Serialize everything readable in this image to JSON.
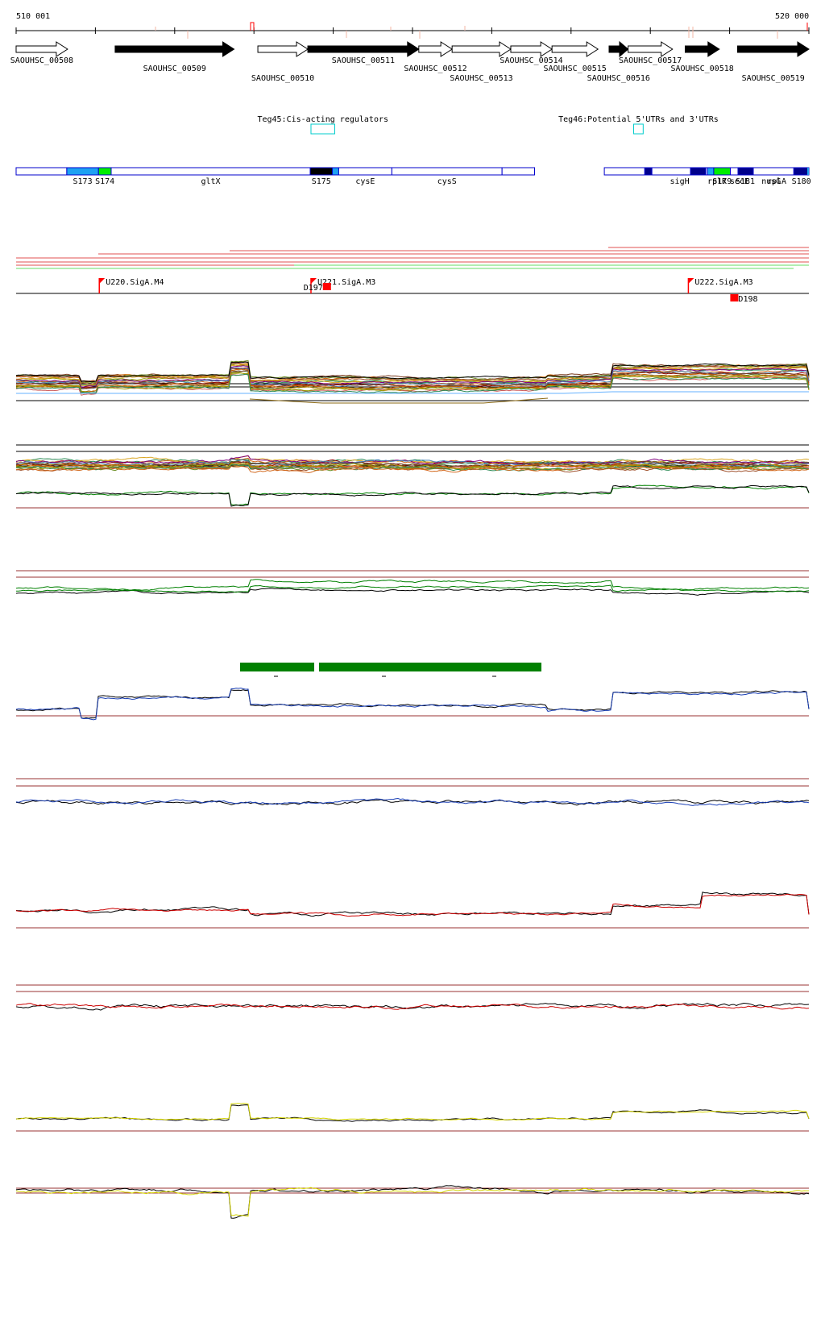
{
  "coords": {
    "start_label": "510 001",
    "end_label": "520 000",
    "start": 510001,
    "end": 520000
  },
  "colors": {
    "gene_black": "#000000",
    "seg_border": "#0000cc",
    "teg_box": "#00cccc",
    "promoter": "#ff0000",
    "guide_line": "#993333",
    "green_bar": "#008000",
    "track_green": "#008000",
    "track_blue": "#1a3fb5",
    "track_red": "#cc0000",
    "track_yellow": "#d4d400"
  },
  "genes": [
    {
      "id": "SAOUHSC_00508",
      "start": 510001,
      "end": 510650,
      "strand": "+",
      "filled": false,
      "label_row": 0
    },
    {
      "id": "SAOUHSC_00509",
      "start": 511250,
      "end": 512750,
      "strand": "+",
      "filled": true,
      "label_row": 1
    },
    {
      "id": "SAOUHSC_00510",
      "start": 513050,
      "end": 513680,
      "strand": "+",
      "filled": false,
      "label_row": 2
    },
    {
      "id": "SAOUHSC_00511",
      "start": 513680,
      "end": 515080,
      "strand": "+",
      "filled": true,
      "label_row": 0
    },
    {
      "id": "SAOUHSC_00512",
      "start": 515080,
      "end": 515500,
      "strand": "+",
      "filled": false,
      "label_row": 1
    },
    {
      "id": "SAOUHSC_00513",
      "start": 515500,
      "end": 516240,
      "strand": "+",
      "filled": false,
      "label_row": 2
    },
    {
      "id": "SAOUHSC_00514",
      "start": 516240,
      "end": 516760,
      "strand": "+",
      "filled": false,
      "label_row": 0
    },
    {
      "id": "SAOUHSC_00515",
      "start": 516760,
      "end": 517340,
      "strand": "+",
      "filled": false,
      "label_row": 1
    },
    {
      "id": "SAOUHSC_00516",
      "start": 517480,
      "end": 517720,
      "strand": "+",
      "filled": true,
      "label_row": 2
    },
    {
      "id": "SAOUHSC_00517",
      "start": 517720,
      "end": 518280,
      "strand": "+",
      "filled": false,
      "label_row": 0
    },
    {
      "id": "SAOUHSC_00518",
      "start": 518440,
      "end": 518870,
      "strand": "+",
      "filled": true,
      "label_row": 1
    },
    {
      "id": "SAOUHSC_00519",
      "start": 519100,
      "end": 520000,
      "strand": "+",
      "filled": true,
      "label_row": 2
    }
  ],
  "tegs": [
    {
      "label": "Teg45:Cis-acting regulators",
      "start": 513720,
      "end": 514020
    },
    {
      "label": "Teg46:Potential 5'UTRs and 3'UTRs",
      "start": 517790,
      "end": 517910
    }
  ],
  "segments": [
    {
      "start": 510001,
      "end": 510640,
      "fill": "none",
      "label": ""
    },
    {
      "start": 510640,
      "end": 511040,
      "fill": "#1ea1f2",
      "label": "S173"
    },
    {
      "start": 511040,
      "end": 511200,
      "fill": "#00ee00",
      "label": "S174"
    },
    {
      "start": 511200,
      "end": 513710,
      "fill": "none",
      "label": "gltX"
    },
    {
      "start": 513710,
      "end": 513990,
      "fill": "#000000",
      "label": "S175"
    },
    {
      "start": 513990,
      "end": 514070,
      "fill": "#1ea1f2",
      "label": ""
    },
    {
      "start": 514070,
      "end": 514740,
      "fill": "none",
      "label": "cysE"
    },
    {
      "start": 514740,
      "end": 516130,
      "fill": "none",
      "label": "cysS"
    },
    {
      "start": 516130,
      "end": 516540,
      "fill": "none",
      "label": ""
    },
    {
      "start": 517420,
      "end": 517930,
      "fill": "none",
      "label": ""
    },
    {
      "start": 517930,
      "end": 518020,
      "fill": "#00008b",
      "label": ""
    },
    {
      "start": 518020,
      "end": 518720,
      "fill": "none",
      "label": "sigH"
    },
    {
      "start": 518720,
      "end": 518800,
      "fill": "#1ea1f2",
      "label": ""
    },
    {
      "start": 518800,
      "end": 519010,
      "fill": "#00ee00",
      "label": "S179"
    },
    {
      "start": 519010,
      "end": 519240,
      "fill": "none",
      "label": "secE"
    },
    {
      "start": 519240,
      "end": 519810,
      "fill": "none",
      "label": "nusG"
    },
    {
      "start": 519810,
      "end": 520000,
      "fill": "#00008b",
      "label": "S180"
    }
  ],
  "segments_right_labels": [
    {
      "label": "rplK"
    },
    {
      "label": "S181"
    },
    {
      "label": "rplA"
    }
  ],
  "promoters": [
    {
      "label": "U220.SigA.M4",
      "pos": 511050
    },
    {
      "label": "U221.SigA.M3",
      "pos": 513720
    },
    {
      "label": "U222.SigA.M3",
      "pos": 518480
    }
  ],
  "terminators": [
    {
      "label": "D197",
      "pos": 513850
    },
    {
      "label": "D198",
      "pos": 519100
    }
  ]
}
